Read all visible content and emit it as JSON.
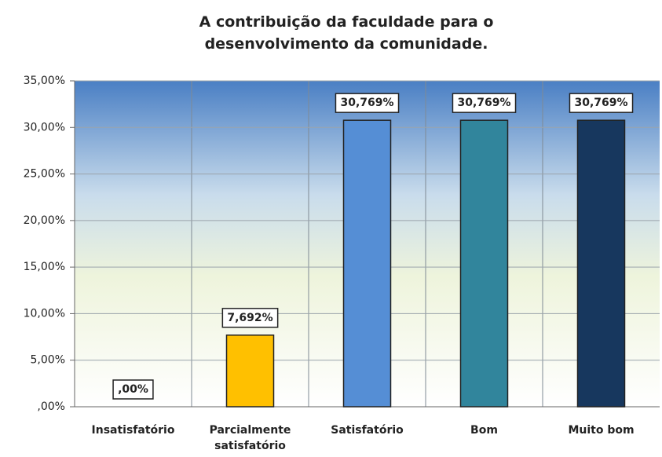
{
  "chart_data": {
    "type": "bar",
    "title": "A contribuição da faculdade para o desenvolvimento da comunidade.",
    "categories": [
      "Insatisfatório",
      "Parcialmente satisfatório",
      "Satisfatório",
      "Bom",
      "Muito bom"
    ],
    "values": [
      0,
      7.692,
      30.769,
      30.769,
      30.769
    ],
    "value_labels": [
      ",00%",
      "7,692%",
      "30,769%",
      "30,769%",
      "30,769%"
    ],
    "colors": [
      null,
      "#ffc000",
      "#558ed5",
      "#31859c",
      "#17375e"
    ],
    "ylim": [
      0,
      35
    ],
    "yticks": [
      {
        "value": 0,
        "label": ",00%"
      },
      {
        "value": 5,
        "label": "5,00%"
      },
      {
        "value": 10,
        "label": "10,00%"
      },
      {
        "value": 15,
        "label": "15,00%"
      },
      {
        "value": 20,
        "label": "20,00%"
      },
      {
        "value": 25,
        "label": "25,00%"
      },
      {
        "value": 30,
        "label": "30,00%"
      },
      {
        "value": 35,
        "label": "35,00%"
      }
    ],
    "grid": true
  }
}
